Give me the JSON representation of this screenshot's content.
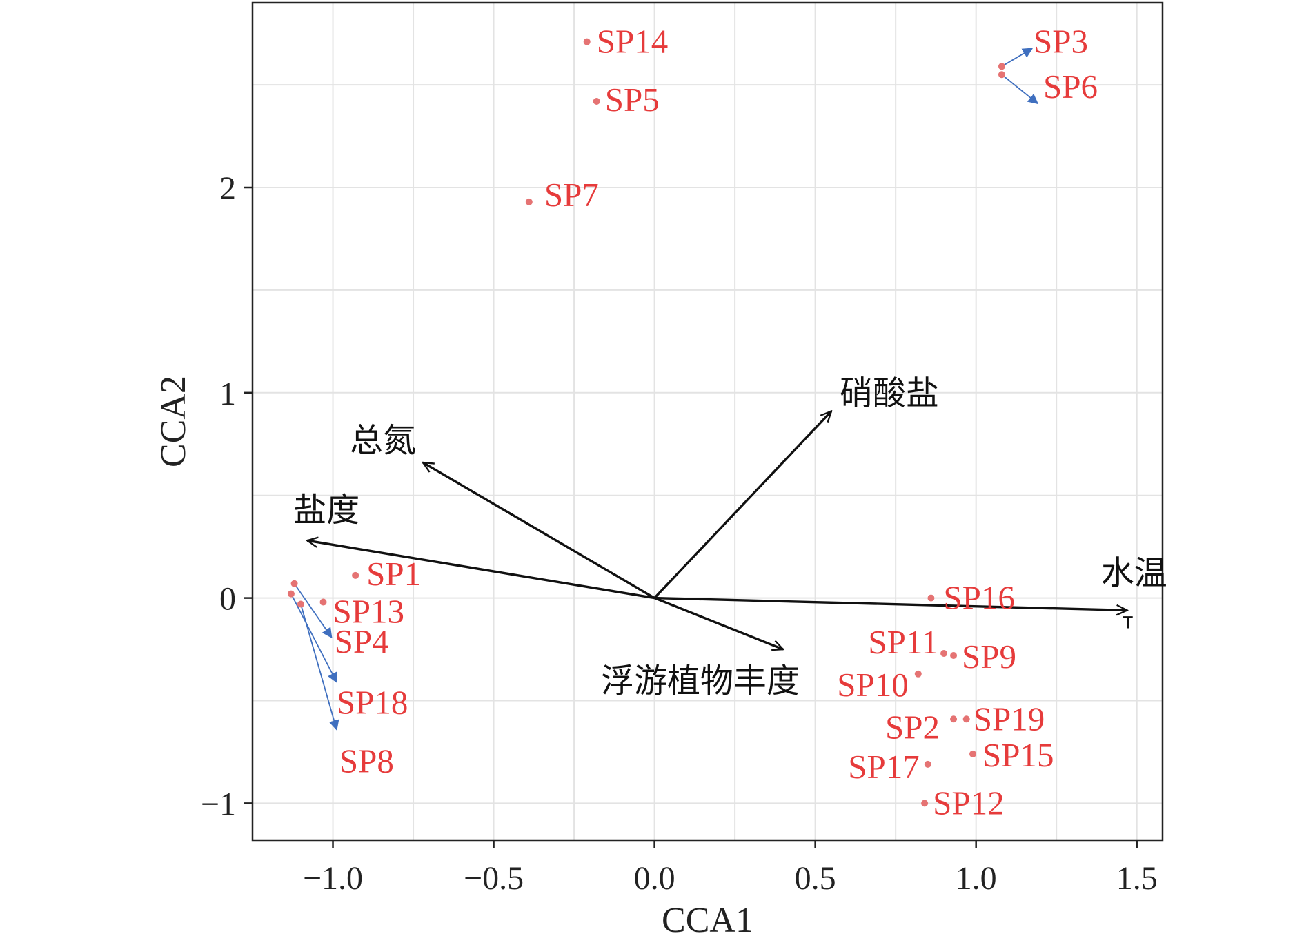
{
  "chart_data": {
    "type": "scatter",
    "title": "",
    "xlabel": "CCA1",
    "ylabel": "CCA2",
    "xlim": [
      -1.25,
      1.58
    ],
    "ylim": [
      -1.18,
      2.9
    ],
    "xticks": [
      -1.0,
      -0.5,
      0.0,
      0.5,
      1.0,
      1.5
    ],
    "xtick_labels": [
      "−1.0",
      "−0.5",
      "0.0",
      "0.5",
      "1.0",
      "1.5"
    ],
    "yticks": [
      -1,
      0,
      1,
      2
    ],
    "ytick_labels": [
      "−1",
      "0",
      "1",
      "2"
    ],
    "grid": true,
    "colors": {
      "species": "#e63b3b",
      "species_point": "#e57373",
      "env": "#111111",
      "leader": "#3f6fbf",
      "grid": "#e3e3e3"
    },
    "species": [
      {
        "label": "SP14",
        "x": -0.21,
        "y": 2.71
      },
      {
        "label": "SP5",
        "x": -0.18,
        "y": 2.42
      },
      {
        "label": "SP7",
        "x": -0.39,
        "y": 1.93
      },
      {
        "label": "SP3",
        "x": 1.08,
        "y": 2.59
      },
      {
        "label": "SP6",
        "x": 1.08,
        "y": 2.55
      },
      {
        "label": "SP1",
        "x": -0.93,
        "y": 0.11
      },
      {
        "label": "SP13",
        "x": -1.03,
        "y": -0.02
      },
      {
        "label": "SP4",
        "x": -1.12,
        "y": 0.07
      },
      {
        "label": "SP18",
        "x": -1.13,
        "y": 0.02
      },
      {
        "label": "SP8",
        "x": -1.1,
        "y": -0.03
      },
      {
        "label": "SP16",
        "x": 0.86,
        "y": 0.0
      },
      {
        "label": "SP11",
        "x": 0.9,
        "y": -0.27
      },
      {
        "label": "SP9",
        "x": 0.93,
        "y": -0.28
      },
      {
        "label": "SP10",
        "x": 0.82,
        "y": -0.37
      },
      {
        "label": "SP2",
        "x": 0.93,
        "y": -0.59
      },
      {
        "label": "SP19",
        "x": 0.97,
        "y": -0.59
      },
      {
        "label": "SP15",
        "x": 0.99,
        "y": -0.76
      },
      {
        "label": "SP17",
        "x": 0.85,
        "y": -0.81
      },
      {
        "label": "SP12",
        "x": 0.84,
        "y": -1.0
      }
    ],
    "env_vectors": [
      {
        "label": "硝酸盐",
        "x": 0.55,
        "y": 0.91
      },
      {
        "label": "总氮",
        "x": -0.72,
        "y": 0.66
      },
      {
        "label": "盐度",
        "x": -1.08,
        "y": 0.28
      },
      {
        "label": "水温",
        "x": 1.47,
        "y": -0.06
      },
      {
        "label": "浮游植物丰度",
        "x": 0.4,
        "y": -0.25
      }
    ]
  }
}
